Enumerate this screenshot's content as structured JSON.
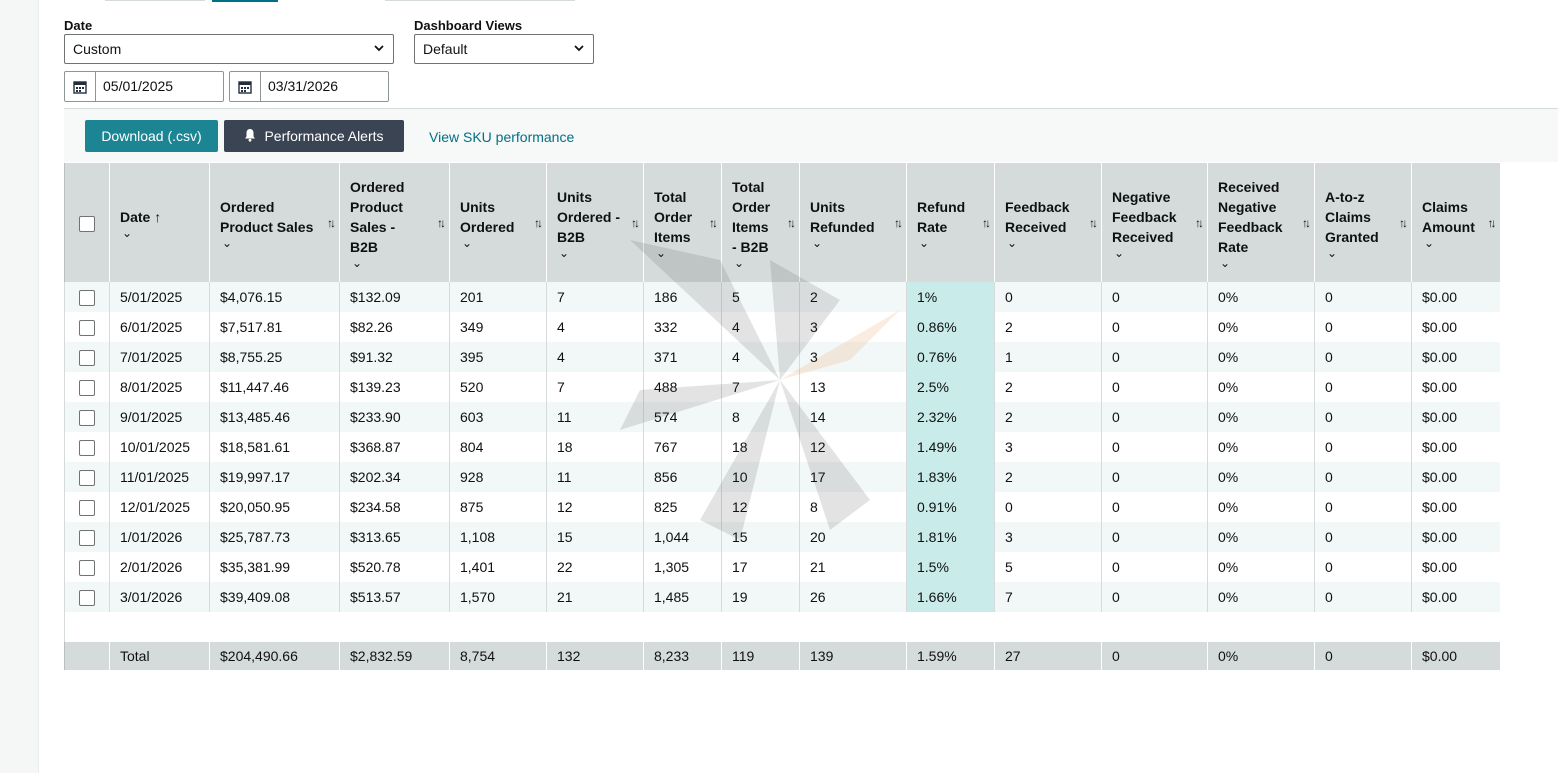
{
  "date_filter": {
    "label": "Date",
    "value": "Custom"
  },
  "dashboard_views": {
    "label": "Dashboard Views",
    "value": "Default"
  },
  "date_range": {
    "start": "05/01/2025",
    "end": "03/31/2026"
  },
  "toolbar": {
    "download_label": "Download (.csv)",
    "alerts_label": "Performance Alerts",
    "sku_link": "View SKU performance"
  },
  "table": {
    "headers": [
      "Date",
      "Ordered Product Sales",
      "Ordered Product Sales - B2B",
      "Units Ordered",
      "Units Ordered - B2B",
      "Total Order Items",
      "Total Order Items - B2B",
      "Units Refunded",
      "Refund Rate",
      "Feedback Received",
      "Negative Feedback Received",
      "Received Negative Feedback Rate",
      "A-to-z Claims Granted",
      "Claims Amount"
    ],
    "rows": [
      [
        "5/01/2025",
        "$4,076.15",
        "$132.09",
        "201",
        "7",
        "186",
        "5",
        "2",
        "1%",
        "0",
        "0",
        "0%",
        "0",
        "$0.00"
      ],
      [
        "6/01/2025",
        "$7,517.81",
        "$82.26",
        "349",
        "4",
        "332",
        "4",
        "3",
        "0.86%",
        "2",
        "0",
        "0%",
        "0",
        "$0.00"
      ],
      [
        "7/01/2025",
        "$8,755.25",
        "$91.32",
        "395",
        "4",
        "371",
        "4",
        "3",
        "0.76%",
        "1",
        "0",
        "0%",
        "0",
        "$0.00"
      ],
      [
        "8/01/2025",
        "$11,447.46",
        "$139.23",
        "520",
        "7",
        "488",
        "7",
        "13",
        "2.5%",
        "2",
        "0",
        "0%",
        "0",
        "$0.00"
      ],
      [
        "9/01/2025",
        "$13,485.46",
        "$233.90",
        "603",
        "11",
        "574",
        "8",
        "14",
        "2.32%",
        "2",
        "0",
        "0%",
        "0",
        "$0.00"
      ],
      [
        "10/01/2025",
        "$18,581.61",
        "$368.87",
        "804",
        "18",
        "767",
        "18",
        "12",
        "1.49%",
        "3",
        "0",
        "0%",
        "0",
        "$0.00"
      ],
      [
        "11/01/2025",
        "$19,997.17",
        "$202.34",
        "928",
        "11",
        "856",
        "10",
        "17",
        "1.83%",
        "2",
        "0",
        "0%",
        "0",
        "$0.00"
      ],
      [
        "12/01/2025",
        "$20,050.95",
        "$234.58",
        "875",
        "12",
        "825",
        "12",
        "8",
        "0.91%",
        "0",
        "0",
        "0%",
        "0",
        "$0.00"
      ],
      [
        "1/01/2026",
        "$25,787.73",
        "$313.65",
        "1,108",
        "15",
        "1,044",
        "15",
        "20",
        "1.81%",
        "3",
        "0",
        "0%",
        "0",
        "$0.00"
      ],
      [
        "2/01/2026",
        "$35,381.99",
        "$520.78",
        "1,401",
        "22",
        "1,305",
        "17",
        "21",
        "1.5%",
        "5",
        "0",
        "0%",
        "0",
        "$0.00"
      ],
      [
        "3/01/2026",
        "$39,409.08",
        "$513.57",
        "1,570",
        "21",
        "1,485",
        "19",
        "26",
        "1.66%",
        "7",
        "0",
        "0%",
        "0",
        "$0.00"
      ]
    ],
    "totals": [
      "Total",
      "$204,490.66",
      "$2,832.59",
      "8,754",
      "132",
      "8,233",
      "119",
      "139",
      "1.59%",
      "27",
      "0",
      "0%",
      "0",
      "$0.00"
    ]
  },
  "colors": {
    "primary_button": "#1c8594",
    "secondary_button": "#3a4452",
    "link": "#007185",
    "refund_highlight": "#c9ecea",
    "header_bg": "#d5dbdb"
  }
}
